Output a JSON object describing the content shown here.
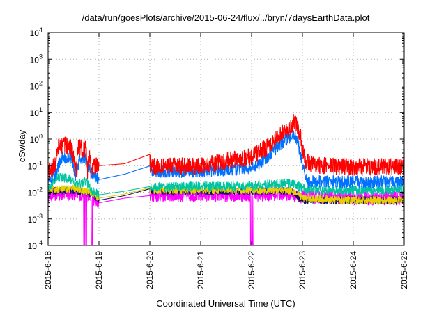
{
  "chart_data": {
    "type": "line",
    "title": "/data/run/goesPlots/archive/2015-06-24/flux/../bryn/7daysEarthData.plot",
    "xlabel": "Coordinated Universal Time (UTC)",
    "ylabel": "cSv/day",
    "yscale": "log",
    "ylim": [
      0.0001,
      10000
    ],
    "xlim": [
      "2015-06-18",
      "2015-06-25"
    ],
    "x_ticks": [
      "2015-6-18",
      "2015-6-19",
      "2015-6-20",
      "2015-6-21",
      "2015-6-22",
      "2015-6-23",
      "2015-6-24",
      "2015-6-25"
    ],
    "y_ticks": [
      {
        "value": 0.0001,
        "base": "10",
        "exp": "-4"
      },
      {
        "value": 0.001,
        "base": "10",
        "exp": "-3"
      },
      {
        "value": 0.01,
        "base": "10",
        "exp": "-2"
      },
      {
        "value": 0.1,
        "base": "10",
        "exp": "-1"
      },
      {
        "value": 1,
        "base": "10",
        "exp": "0"
      },
      {
        "value": 10,
        "base": "10",
        "exp": "1"
      },
      {
        "value": 100,
        "base": "10",
        "exp": "2"
      },
      {
        "value": 1000,
        "base": "10",
        "exp": "3"
      },
      {
        "value": 10000,
        "base": "10",
        "exp": "4"
      }
    ],
    "grid": true,
    "legend": "none",
    "series": [
      {
        "color": "#ff0000",
        "noise": 0.55,
        "points": [
          [
            0.0,
            0.05
          ],
          [
            0.15,
            0.12
          ],
          [
            0.2,
            0.5
          ],
          [
            0.3,
            0.6
          ],
          [
            0.45,
            0.5
          ],
          [
            0.55,
            0.07
          ],
          [
            0.6,
            0.5
          ],
          [
            0.75,
            0.4
          ],
          [
            0.77,
            0.05
          ],
          [
            0.82,
            0.3
          ],
          [
            0.85,
            0.09
          ],
          [
            1.0,
            0.1
          ],
          [
            2.0,
            0.14
          ],
          [
            2.02,
            0.09
          ],
          [
            3.0,
            0.1
          ],
          [
            3.5,
            0.15
          ],
          [
            4.0,
            0.22
          ],
          [
            4.3,
            0.5
          ],
          [
            4.5,
            1.2
          ],
          [
            4.75,
            2.5
          ],
          [
            4.85,
            5.0
          ],
          [
            4.95,
            1.5
          ],
          [
            5.05,
            0.15
          ],
          [
            5.3,
            0.1
          ],
          [
            6.0,
            0.09
          ],
          [
            7.0,
            0.09
          ]
        ]
      },
      {
        "color": "#0070ff",
        "noise": 0.4,
        "points": [
          [
            0.0,
            0.03
          ],
          [
            0.15,
            0.05
          ],
          [
            0.25,
            0.2
          ],
          [
            0.45,
            0.2
          ],
          [
            0.55,
            0.04
          ],
          [
            0.62,
            0.2
          ],
          [
            0.75,
            0.18
          ],
          [
            0.85,
            0.04
          ],
          [
            1.0,
            0.03
          ],
          [
            2.0,
            0.075
          ],
          [
            2.02,
            0.06
          ],
          [
            3.0,
            0.06
          ],
          [
            3.5,
            0.07
          ],
          [
            4.0,
            0.08
          ],
          [
            4.3,
            0.2
          ],
          [
            4.55,
            0.6
          ],
          [
            4.8,
            1.5
          ],
          [
            4.9,
            1.0
          ],
          [
            5.0,
            0.12
          ],
          [
            5.1,
            0.025
          ],
          [
            6.0,
            0.025
          ],
          [
            7.0,
            0.025
          ]
        ]
      },
      {
        "color": "#00c4a0",
        "noise": 0.3,
        "points": [
          [
            0.0,
            0.015
          ],
          [
            0.2,
            0.04
          ],
          [
            0.45,
            0.03
          ],
          [
            0.55,
            0.02
          ],
          [
            0.75,
            0.025
          ],
          [
            0.85,
            0.012
          ],
          [
            1.0,
            0.008
          ],
          [
            2.0,
            0.015
          ],
          [
            2.02,
            0.015
          ],
          [
            3.0,
            0.017
          ],
          [
            4.0,
            0.017
          ],
          [
            4.4,
            0.02
          ],
          [
            4.8,
            0.022
          ],
          [
            5.0,
            0.014
          ],
          [
            5.2,
            0.012
          ],
          [
            6.0,
            0.012
          ],
          [
            7.0,
            0.012
          ]
        ]
      },
      {
        "color": "#e8d000",
        "noise": 0.25,
        "points": [
          [
            0.0,
            0.012
          ],
          [
            0.5,
            0.014
          ],
          [
            0.85,
            0.01
          ],
          [
            1.0,
            0.006
          ],
          [
            2.0,
            0.012
          ],
          [
            2.02,
            0.012
          ],
          [
            3.0,
            0.012
          ],
          [
            4.0,
            0.012
          ],
          [
            4.8,
            0.012
          ],
          [
            5.0,
            0.006
          ],
          [
            6.0,
            0.005
          ],
          [
            7.0,
            0.005
          ]
        ]
      },
      {
        "color": "#101060",
        "noise": 0.25,
        "points": [
          [
            0.0,
            0.011
          ],
          [
            0.5,
            0.012
          ],
          [
            0.85,
            0.009
          ],
          [
            1.0,
            0.005
          ],
          [
            2.0,
            0.011
          ],
          [
            2.02,
            0.011
          ],
          [
            3.0,
            0.011
          ],
          [
            4.0,
            0.011
          ],
          [
            4.8,
            0.011
          ],
          [
            5.0,
            0.005
          ],
          [
            6.0,
            0.005
          ],
          [
            7.0,
            0.005
          ]
        ]
      },
      {
        "color": "#ff00ff",
        "noise": 0.45,
        "points": [
          [
            0.0,
            0.008
          ],
          [
            0.5,
            0.009
          ],
          [
            0.85,
            0.007
          ],
          [
            1.0,
            0.004
          ],
          [
            2.0,
            0.009
          ],
          [
            2.02,
            0.008
          ],
          [
            3.0,
            0.008
          ],
          [
            4.0,
            0.008
          ],
          [
            4.6,
            0.009
          ],
          [
            5.0,
            0.007
          ],
          [
            6.0,
            0.006
          ],
          [
            7.0,
            0.006
          ]
        ],
        "dips": [
          [
            0.7,
            0.72
          ],
          [
            0.74,
            0.76
          ],
          [
            0.85,
            0.87
          ],
          [
            3.98,
            4.0
          ],
          [
            4.02,
            4.04
          ]
        ]
      }
    ]
  }
}
